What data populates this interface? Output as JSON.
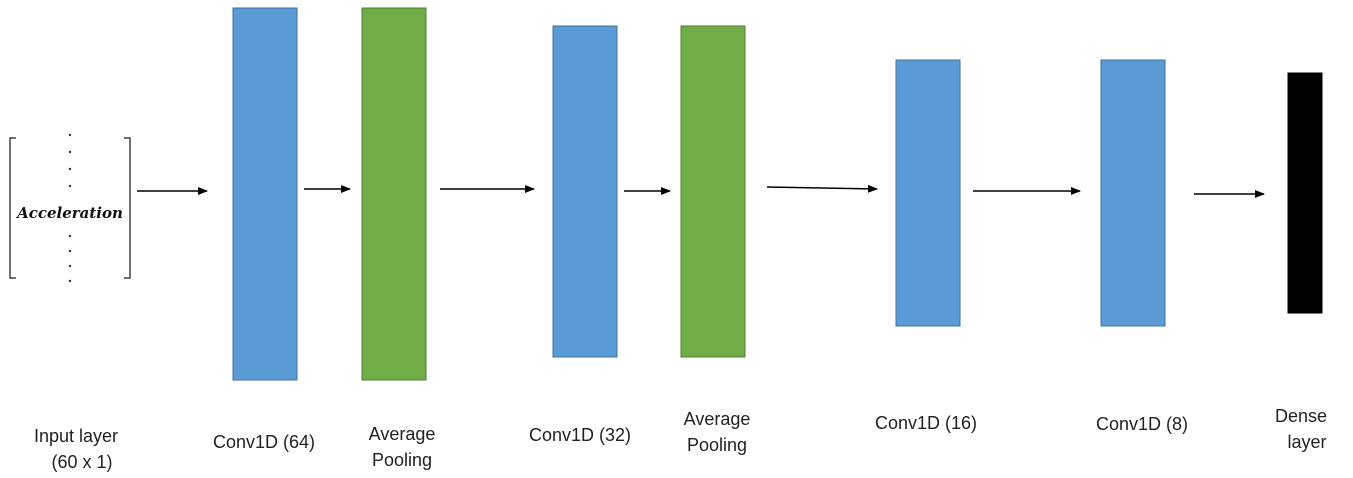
{
  "title": "",
  "colors": {
    "conv": "#5b9bd5",
    "conv_stroke": "#41719c",
    "pooling": "#70ad47",
    "pooling_stroke": "#507e32",
    "dense": "#000000",
    "arrow": "#000000",
    "bracket": "#444444"
  },
  "input": {
    "symbol": "Acceleration",
    "label_line1": "Input layer",
    "label_line2": "(60 x 1)"
  },
  "layers": [
    {
      "id": "conv1",
      "type": "conv",
      "label_lines": [
        "Conv1D (64)"
      ]
    },
    {
      "id": "pool1",
      "type": "pooling",
      "label_lines": [
        "Average",
        "Pooling"
      ]
    },
    {
      "id": "conv2",
      "type": "conv",
      "label_lines": [
        "Conv1D (32)"
      ]
    },
    {
      "id": "pool2",
      "type": "pooling",
      "label_lines": [
        "Average",
        "Pooling"
      ]
    },
    {
      "id": "conv3",
      "type": "conv",
      "label_lines": [
        "Conv1D (16)"
      ]
    },
    {
      "id": "conv4",
      "type": "conv",
      "label_lines": [
        "Conv1D (8)"
      ]
    },
    {
      "id": "dense",
      "type": "dense",
      "label_lines": [
        "Dense",
        "layer"
      ]
    }
  ]
}
